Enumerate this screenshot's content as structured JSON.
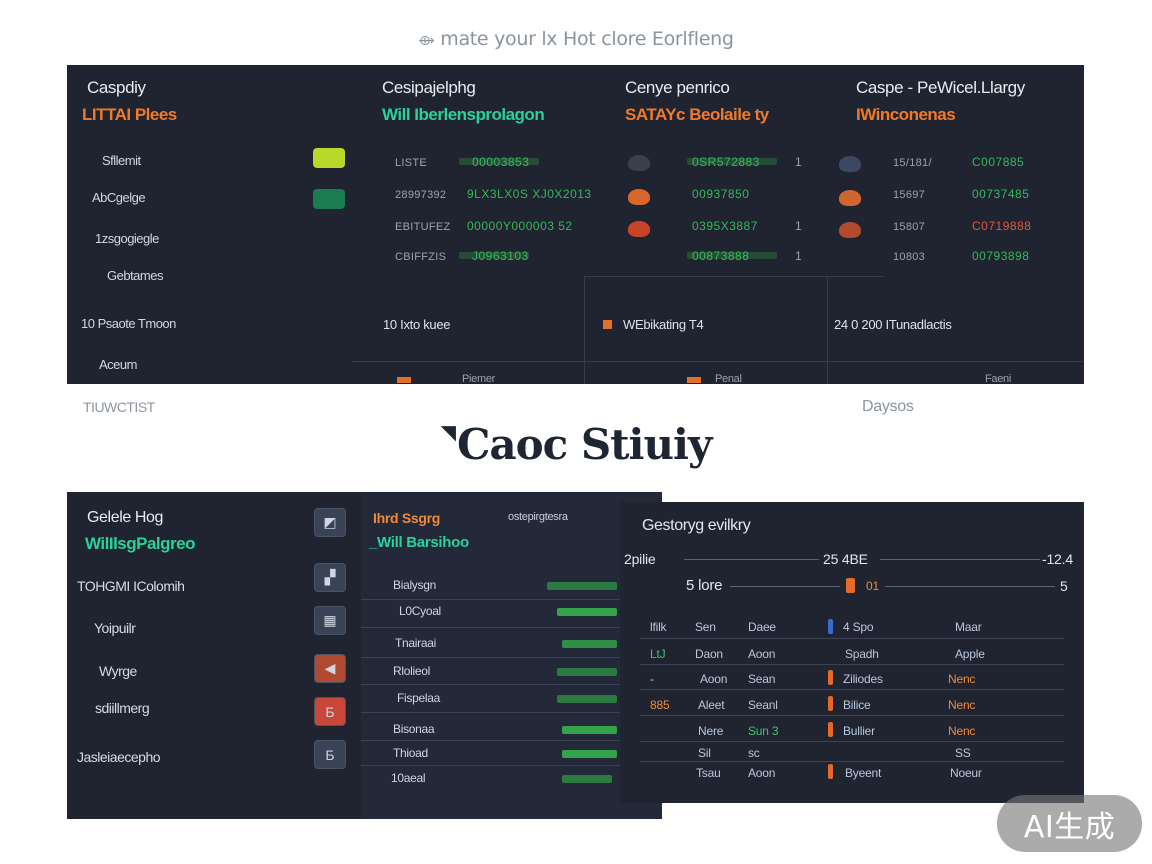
{
  "caption_top": {
    "lead": "⟴",
    "text": "mate your lx Hot clore Eorlfleng"
  },
  "dashboard": {
    "columns": [
      {
        "title": "Caspdiy",
        "sub": "LITTAI Plees"
      },
      {
        "title": "Cesipajelphg",
        "sub": "Will Iberlensprolagon"
      },
      {
        "title": "Cenye penrico",
        "sub": "SATAYc Beolaile ty"
      },
      {
        "title": "Caspe - PeWicel.Llargy",
        "sub": "IWinconenas"
      }
    ],
    "side_items": [
      "Sfllemit",
      "AbCgelge",
      "1zsgogiegle",
      "Gebtames",
      "10 Psaote Tmoon",
      "Aceum"
    ],
    "col2_rows": [
      {
        "label": "LISTE",
        "value": "00003853"
      },
      {
        "label": "28997392",
        "value": "9LX3LX0S XJ0X2013"
      },
      {
        "label": "EBITUFEZ",
        "value": "00000Y000003 52"
      },
      {
        "label": "CBIFFZIS",
        "value": "J0963103"
      }
    ],
    "col3_rows": [
      {
        "value": "0SR572883",
        "mark": "1"
      },
      {
        "value": "00937850",
        "mark": ""
      },
      {
        "value": "0395X3887",
        "mark": "1"
      },
      {
        "value": "00873888",
        "mark": "1"
      }
    ],
    "col4_rows": [
      {
        "label": "15/181/",
        "value": "C007885"
      },
      {
        "label": "15697",
        "value": "00737485"
      },
      {
        "label": "15807",
        "value": "C0719888"
      },
      {
        "label": "10803",
        "value": "00793898"
      }
    ],
    "footer": [
      "10 Ixto kuee",
      "WEbikating T4",
      "24 0 200 ITunadlactis"
    ],
    "footer_cut": [
      "Piemer",
      "Penal",
      "Faeni"
    ]
  },
  "ticker_left": "TIUWCTIST",
  "ticker_right": "Daysos",
  "headline": {
    "mark": "◥",
    "text": "Caoc Stiuiy"
  },
  "bottom_left": {
    "title": "Gelele Hog",
    "sub": "WilIlsgPalgreo",
    "nav": [
      "TOHGMI IColomih",
      "Yoipuilr",
      "Wyrge",
      "sdiillmerg",
      "Jasleiaecepho"
    ],
    "tiles": [
      "◩",
      "▞",
      "▦",
      "◀",
      "Б"
    ],
    "list_title": "Ihrd Ssgrg",
    "list_title_right": "ostepirgtesra",
    "list_sub": "_Will Barsihoo",
    "list_items": [
      "Bialysgn",
      "L0Cyoal",
      "Tnairaai",
      "Rlolieol",
      "Fispelaa",
      "Bisonaa",
      "Thioad",
      "10aeal"
    ]
  },
  "bottom_right": {
    "title": "Gestoryg evilkry",
    "row1": {
      "label": "2pilie",
      "mid": "25 4BE",
      "right": "-12.4"
    },
    "row2": {
      "label": "5 lore",
      "mid": "01",
      "right": "5"
    },
    "headers": [
      "lfilk",
      "Sen",
      "Daee",
      "4 Spo",
      "Maar"
    ],
    "rows": [
      {
        "c1": "LtJ",
        "c2": "Daon",
        "c3": "Aoon",
        "c4": "Spadh",
        "c5": "Apple"
      },
      {
        "c1": "-",
        "c2": "Aoon",
        "c3": "Sean",
        "c4": "Ziliodes",
        "c5": "Nenc"
      },
      {
        "c1": "885",
        "c2": "Aleet",
        "c3": "Seanl",
        "c4": "Bilice",
        "c5": "Nenc"
      },
      {
        "c1": "",
        "c2": "Nere",
        "c3": "Sun 3",
        "c4": "Bullier",
        "c5": "Nenc"
      },
      {
        "c1": "",
        "c2": "Sil",
        "c3": "sc",
        "c4": "",
        "c5": "SS"
      },
      {
        "c1": "",
        "c2": "Tsau",
        "c3": "Aoon",
        "c4": "Byeent",
        "c5": "Noeur"
      }
    ]
  },
  "badge": "AI生成"
}
